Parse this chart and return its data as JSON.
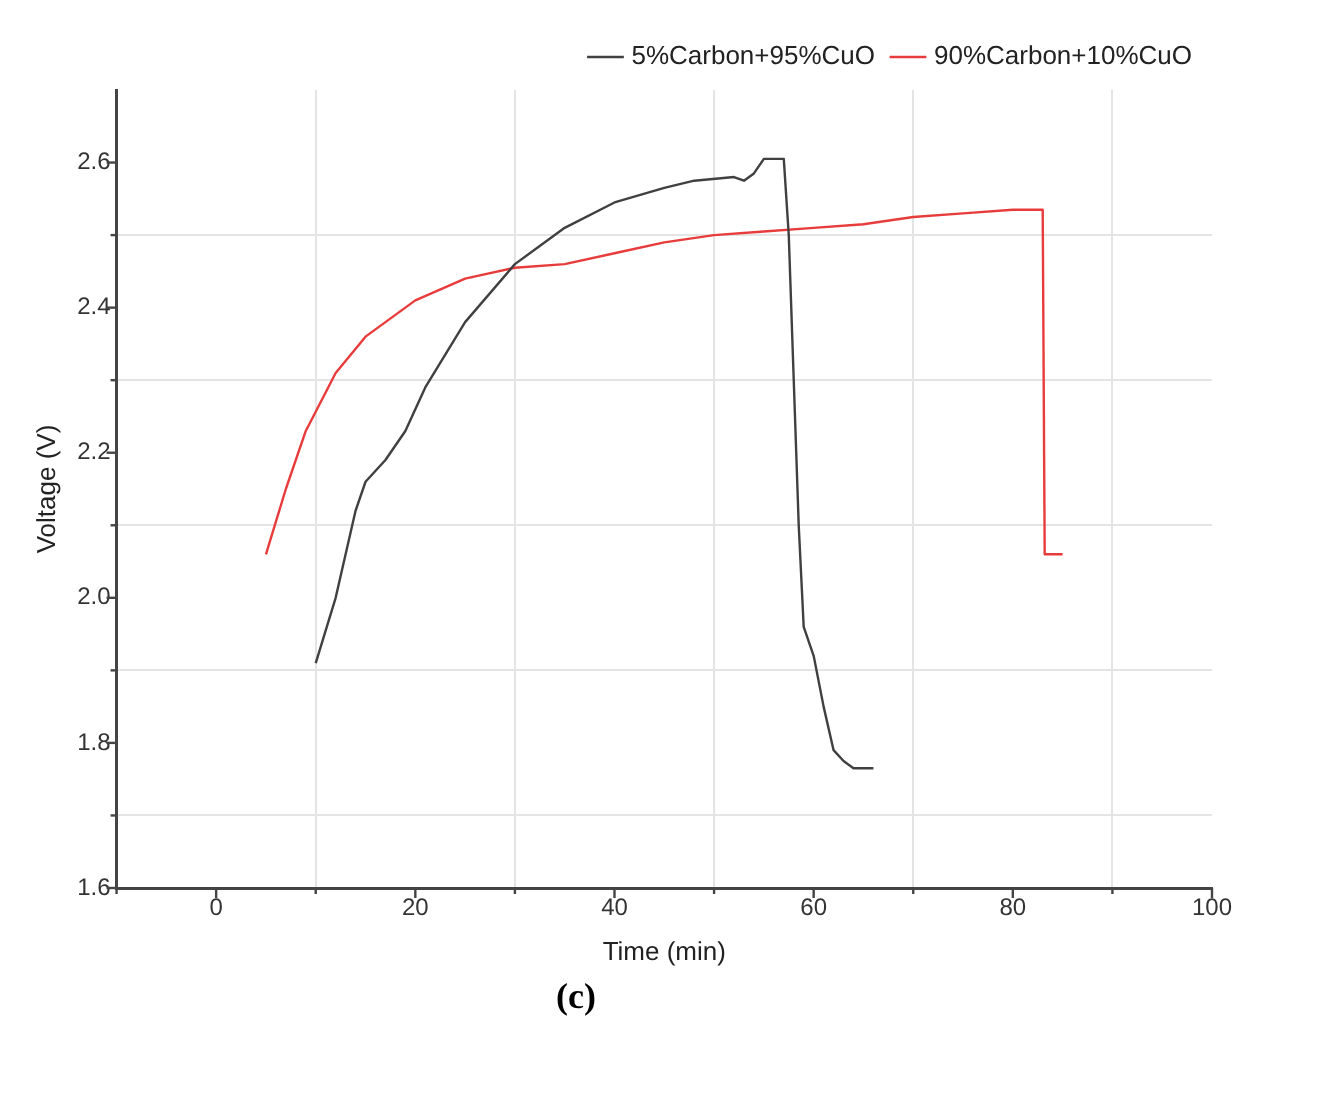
{
  "chart_data": {
    "type": "line",
    "xlabel": "Time (min)",
    "ylabel": "Voltage (V)",
    "annotations": [
      "(c)"
    ],
    "xlim": [
      -10,
      100
    ],
    "xticks": [
      {
        "value": -10,
        "label": null
      },
      0,
      {
        "value": 10,
        "label": null
      },
      20,
      {
        "value": 30,
        "label": null
      },
      40,
      {
        "value": 50,
        "label": null
      },
      60,
      {
        "value": 70,
        "label": null
      },
      80,
      {
        "value": 90,
        "label": null
      },
      100
    ],
    "ylim": [
      1.6,
      2.7
    ],
    "yticks": [
      1.6,
      {
        "value": 1.7,
        "label": null
      },
      1.8,
      {
        "value": 1.9,
        "label": null
      },
      {
        "value": 2,
        "label": "2.0"
      },
      {
        "value": 2.1,
        "label": null
      },
      2.2,
      {
        "value": 2.3,
        "label": null
      },
      2.4,
      {
        "value": 2.5,
        "label": null
      },
      2.6
    ],
    "grid": true,
    "legend": "top right",
    "marker": "none",
    "line_style": "solid",
    "series": [
      {
        "name": "5%Carbon+95%CuO",
        "color": "#404040",
        "x": [
          10,
          12,
          14,
          15,
          17,
          19,
          21,
          25,
          30,
          35,
          40,
          45,
          48,
          52,
          53,
          54,
          55,
          57,
          57.5,
          58,
          58.5,
          59,
          60,
          61,
          62,
          63,
          64,
          66
        ],
        "values": [
          1.91,
          2.0,
          2.12,
          2.16,
          2.19,
          2.23,
          2.29,
          2.38,
          2.46,
          2.51,
          2.545,
          2.565,
          2.575,
          2.58,
          2.575,
          2.585,
          2.605,
          2.605,
          2.5,
          2.3,
          2.1,
          1.96,
          1.92,
          1.85,
          1.79,
          1.775,
          1.765,
          1.765
        ]
      },
      {
        "name": "90%Carbon+10%CuO",
        "color": "#e83c3c",
        "x": [
          5,
          7,
          9,
          12,
          15,
          20,
          25,
          30,
          35,
          40,
          45,
          50,
          55,
          60,
          65,
          70,
          75,
          80,
          83,
          83.2,
          85
        ],
        "values": [
          2.06,
          2.15,
          2.23,
          2.31,
          2.36,
          2.41,
          2.44,
          2.455,
          2.46,
          2.475,
          2.49,
          2.5,
          2.505,
          2.51,
          2.515,
          2.525,
          2.53,
          2.535,
          2.535,
          2.06,
          2.06
        ]
      }
    ]
  }
}
